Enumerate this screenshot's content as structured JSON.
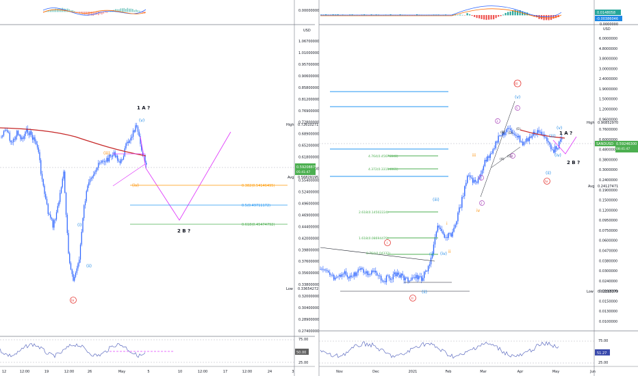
{
  "colors": {
    "candle": "#2962ff",
    "ma": "#c62828",
    "projection": "#e040fb",
    "orange": "#ff9800",
    "blue_level": "#2196f3",
    "green": "#4caf50",
    "rsi": "#5c6bc0",
    "wave_blue": "#1e88e5",
    "wave_red": "#e53935",
    "wave_magenta": "#ab47bc",
    "wave_orange": "#fb8c00",
    "text": "#131722",
    "axis_text": "#131722",
    "grid": "#e0e3eb"
  },
  "left": {
    "price_axis": {
      "ticks": [
        "0.27400000",
        "0.28900000",
        "0.30400000",
        "0.32000000",
        "0.33800000",
        "0.35600000",
        "0.37600000",
        "0.39800000",
        "0.42000000",
        "0.44400000",
        "0.46900000",
        "0.49600000",
        "0.52400000",
        "0.55400000",
        "0.58500000",
        "0.61800000",
        "0.65200000",
        "0.68900000",
        "0.72800000",
        "0.76900000",
        "0.81200000",
        "0.85800000",
        "0.90600000",
        "0.95700000",
        "1.01000000",
        "1.06700000"
      ],
      "zero_label": "0.00000000",
      "unit": "USD",
      "high_label": "High",
      "high_value": "0.72610271",
      "price_tag": "0.59208879",
      "price_tag_time": "05:41:47",
      "avg_label": "Avg",
      "avg_value": "0.56829195",
      "low_label": "Low",
      "low_value": "0.33654272",
      "rsi_ticks": [
        "75.00",
        "25.00"
      ],
      "rsi_tag": "50.00"
    },
    "time_axis": [
      "12",
      "12:00",
      "19",
      "12:00",
      "26",
      "May",
      "5",
      "10",
      "12:00",
      "17",
      "12:00",
      "24",
      "3"
    ],
    "annotations": {
      "a_label": "1 A ?",
      "b_label": "2 B ?",
      "v_label": "(v)",
      "i_label": "(i)",
      "ii_label": "(ii)",
      "iii_label": "(iii)",
      "iv_label": "(iv)",
      "red_iv": "iv"
    },
    "fib_levels": [
      {
        "label": "0.382(0.54146495)",
        "color": "#ff9800"
      },
      {
        "label": "0.5(0.49711172)",
        "color": "#2196f3"
      },
      {
        "label": "0.618(0.45474792)",
        "color": "#4caf50"
      }
    ]
  },
  "right": {
    "price_axis": {
      "ticks": [
        "0.0100000",
        "0.0130000",
        "0.0150000",
        "0.0190000",
        "0.0240000",
        "0.0300000",
        "0.0380000",
        "0.0470000",
        "0.0600000",
        "0.0750000",
        "0.0950000",
        "0.1200000",
        "0.1500000",
        "0.1900000",
        "0.2400000",
        "0.3000000",
        "0.3800000",
        "0.4800000",
        "0.6000000",
        "0.7600000",
        "0.9600000",
        "1.2000000",
        "1.5000000",
        "1.9000000",
        "2.4000000",
        "3.0000000",
        "3.8000000",
        "4.8000000",
        "6.0000000"
      ],
      "top_tag_1": "0.0148058",
      "top_tag_2": "-0.00386046",
      "zero_label": "0.0000000",
      "unit": "USD",
      "high_label": "High",
      "high_value": "0.90852970",
      "price_tag_name": "SANDUSD",
      "price_tag": "0.59246300",
      "price_tag_time": "08:41:47",
      "avg_label": "Avg",
      "avg_value": "0.24127471",
      "low_label": "Low",
      "low_value": "0.02815379",
      "rsi_ticks": [
        "75.00",
        "25.00"
      ],
      "rsi_tag": "51.27"
    },
    "time_axis": [
      "Nov",
      "Dec",
      "2021",
      "Feb",
      "Mar",
      "Apr",
      "May",
      "Jun"
    ],
    "annotations": {
      "a_label": "1 A ?",
      "b_label": "2 B ?",
      "iii_red": "iii",
      "i_red": "i",
      "ii_red": "ii",
      "iv_red": "iv",
      "iii_blue": "(iii)",
      "ii_blue": "(ii)",
      "iv_blue": "(iv)",
      "i_blue": "(i)",
      "v_blue": "(v)",
      "iii_blue2": "(iii)",
      "iv_blue2": "(iv)",
      "ii_blue2": "(ii)",
      "small_i": "i",
      "small_ii": "ii",
      "small_iii": "iii",
      "small_iv": "iv",
      "small_v": "v",
      "wave_A": "(A)",
      "wave_B": "(B)",
      "wave_C": "(C)",
      "wave_D": "(D)",
      "wave_E": "(E)",
      "circ_1": "1",
      "circ_2": "2",
      "circ_3": "3",
      "circ_4": "4",
      "circ_5": "5"
    },
    "fib_levels": [
      {
        "label": "4.764(0.45676848)",
        "color": "#4caf50"
      },
      {
        "label": "4.372(0.33114061)",
        "color": "#4caf50"
      },
      {
        "label": "2.618(0.14502224)",
        "color": "#4caf50"
      },
      {
        "label": "1.618(0.08694479)",
        "color": "#4caf50"
      },
      {
        "label": "0.764(0.04332)",
        "color": "#4caf50"
      }
    ]
  }
}
